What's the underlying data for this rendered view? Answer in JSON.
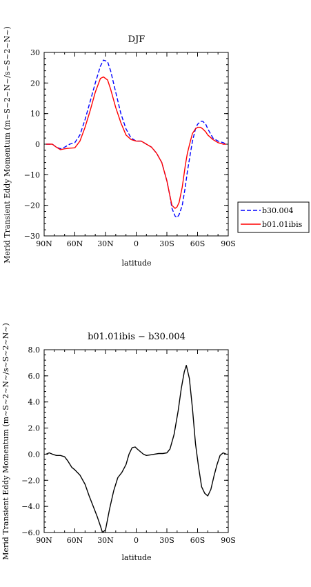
{
  "chart_data": [
    {
      "type": "line",
      "title": "DJF",
      "xlabel": "latitude",
      "ylabel": "Merid Transient Eddy Momentum (m~S~2~N~/s~S~2~N~)",
      "xlim": [
        -90,
        90
      ],
      "ylim": [
        -30,
        30
      ],
      "xticks": [
        {
          "v": -90,
          "label": "90N"
        },
        {
          "v": -60,
          "label": "60N"
        },
        {
          "v": -30,
          "label": "30N"
        },
        {
          "v": 0,
          "label": "0"
        },
        {
          "v": 30,
          "label": "30S"
        },
        {
          "v": 60,
          "label": "60S"
        },
        {
          "v": 90,
          "label": "90S"
        }
      ],
      "yticks": [
        {
          "v": 30,
          "label": "30"
        },
        {
          "v": 20,
          "label": "20"
        },
        {
          "v": 10,
          "label": "10"
        },
        {
          "v": 0,
          "label": "0"
        },
        {
          "v": -10,
          "label": "−10"
        },
        {
          "v": -20,
          "label": "−20"
        },
        {
          "v": -30,
          "label": "−30"
        }
      ],
      "legend": "right",
      "series": [
        {
          "name": "b30.004",
          "color": "#0000ff",
          "dash": "dashed",
          "x": [
            -88,
            -82,
            -78,
            -74,
            -70,
            -65,
            -60,
            -55,
            -50,
            -45,
            -40,
            -35,
            -32,
            -28,
            -25,
            -20,
            -15,
            -10,
            -5,
            0,
            5,
            10,
            15,
            20,
            25,
            30,
            33,
            35,
            38,
            40,
            42,
            45,
            48,
            50,
            53,
            55,
            58,
            60,
            63,
            65,
            68,
            70,
            75,
            80,
            85,
            88
          ],
          "y": [
            0,
            0,
            -1,
            -1.5,
            -1,
            0,
            0.5,
            3,
            8,
            14,
            20,
            25.5,
            27.5,
            27,
            24,
            17,
            10,
            5,
            2,
            1,
            1,
            0,
            -1,
            -3,
            -6,
            -12,
            -17,
            -21,
            -23.5,
            -24,
            -23,
            -20,
            -14,
            -9,
            -3,
            1,
            5,
            6.5,
            7.5,
            7.5,
            6.5,
            5,
            2,
            1,
            0.5,
            0
          ]
        },
        {
          "name": "b01.01ibis",
          "color": "#ff0000",
          "dash": "solid",
          "x": [
            -88,
            -82,
            -78,
            -74,
            -70,
            -65,
            -60,
            -55,
            -50,
            -45,
            -40,
            -35,
            -32,
            -28,
            -25,
            -20,
            -15,
            -10,
            -5,
            0,
            5,
            10,
            15,
            20,
            25,
            30,
            33,
            35,
            38,
            40,
            42,
            45,
            48,
            50,
            53,
            55,
            58,
            60,
            63,
            65,
            68,
            70,
            75,
            80,
            85,
            88
          ],
          "y": [
            0,
            0,
            -1,
            -1.8,
            -1.5,
            -1.3,
            -1.2,
            1,
            5.5,
            11,
            17,
            21.5,
            22,
            21,
            18,
            12,
            7,
            3,
            1.5,
            1,
            1,
            0,
            -1,
            -3,
            -6,
            -12,
            -17,
            -20,
            -21,
            -20.5,
            -19,
            -14,
            -7,
            -3,
            1,
            3.5,
            5,
            5.5,
            5.5,
            5,
            4,
            3,
            1.5,
            0.5,
            0,
            0
          ]
        }
      ]
    },
    {
      "type": "line",
      "title": "b01.01ibis − b30.004",
      "xlabel": "latitude",
      "ylabel": "Merid Transient Eddy Momentum (m~S~2~N~/s~S~2~N~)",
      "xlim": [
        -90,
        90
      ],
      "ylim": [
        -6,
        8
      ],
      "xticks": [
        {
          "v": -90,
          "label": "90N"
        },
        {
          "v": -60,
          "label": "60N"
        },
        {
          "v": -30,
          "label": "30N"
        },
        {
          "v": 0,
          "label": "0"
        },
        {
          "v": 30,
          "label": "30S"
        },
        {
          "v": 60,
          "label": "60S"
        },
        {
          "v": 90,
          "label": "90S"
        }
      ],
      "yticks": [
        {
          "v": 8,
          "label": "8.0"
        },
        {
          "v": 6,
          "label": "6.0"
        },
        {
          "v": 4,
          "label": "4.0"
        },
        {
          "v": 2,
          "label": "2.0"
        },
        {
          "v": 0,
          "label": "0.0"
        },
        {
          "v": -2,
          "label": "−2.0"
        },
        {
          "v": -4,
          "label": "−4.0"
        },
        {
          "v": -6,
          "label": "−6.0"
        }
      ],
      "series": [
        {
          "name": "",
          "color": "#000000",
          "dash": "solid",
          "x": [
            -88,
            -85,
            -82,
            -78,
            -74,
            -70,
            -67,
            -63,
            -60,
            -55,
            -50,
            -46,
            -42,
            -38,
            -35,
            -33,
            -30,
            -26,
            -22,
            -18,
            -14,
            -10,
            -7,
            -4,
            -1,
            1,
            4,
            7,
            10,
            14,
            18,
            22,
            26,
            30,
            33,
            37,
            41,
            44,
            47,
            49,
            52,
            55,
            58,
            61,
            64,
            67,
            70,
            73,
            76,
            79,
            82,
            85,
            88
          ],
          "y": [
            0,
            0.1,
            0,
            -0.1,
            -0.1,
            -0.2,
            -0.5,
            -1,
            -1.2,
            -1.6,
            -2.3,
            -3.2,
            -4,
            -4.8,
            -5.5,
            -6,
            -5.8,
            -4.2,
            -2.8,
            -1.8,
            -1.4,
            -0.8,
            0,
            0.5,
            0.55,
            0.4,
            0.2,
            0,
            -0.1,
            -0.05,
            0,
            0.05,
            0.05,
            0.1,
            0.4,
            1.5,
            3.3,
            5,
            6.3,
            6.8,
            5.8,
            3.5,
            0.8,
            -1,
            -2.5,
            -3,
            -3.2,
            -2.7,
            -1.7,
            -0.8,
            -0.1,
            0.1,
            0
          ]
        }
      ]
    }
  ]
}
